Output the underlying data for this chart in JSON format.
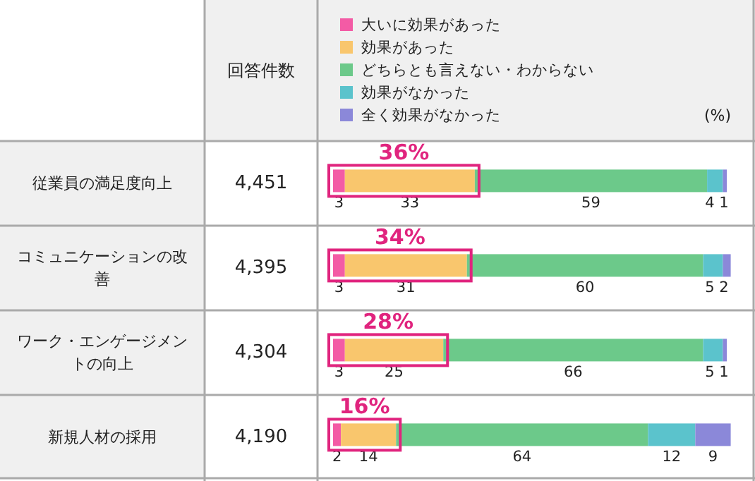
{
  "chart_data": {
    "type": "bar",
    "orientation": "horizontal",
    "stacked": true,
    "data_labels": true,
    "legend": "top",
    "xlabel": "(%)",
    "categories": [
      "従業員の満足度向上",
      "コミュニケーションの改善",
      "ワーク・エンゲージメントの向上",
      "新規人材の採用"
    ],
    "series": [
      {
        "name": "大いに効果があった",
        "color": "#f35ba5",
        "values": [
          3,
          3,
          3,
          2
        ]
      },
      {
        "name": "効果があった",
        "color": "#f9c66d",
        "values": [
          33,
          31,
          25,
          14
        ]
      },
      {
        "name": "どちらとも言えない・わからない",
        "color": "#6cc98a",
        "values": [
          59,
          60,
          66,
          64
        ]
      },
      {
        "name": "効果がなかった",
        "color": "#5bc3cc",
        "values": [
          4,
          5,
          5,
          12
        ]
      },
      {
        "name": "全く効果がなかった",
        "color": "#8b88d9",
        "values": [
          1,
          2,
          1,
          9
        ]
      }
    ],
    "annotations": [
      "回答件数",
      "4,451",
      "4,395",
      "4,304",
      "4,190",
      {
        "text": "36%",
        "x": 36,
        "y": "従業員の満足度向上"
      },
      {
        "text": "34%",
        "x": 34,
        "y": "コミュニケーションの改善"
      },
      {
        "text": "28%",
        "x": 28,
        "y": "ワーク・エンゲージメントの向上"
      },
      {
        "text": "16%",
        "x": 16,
        "y": "新規人材の採用"
      }
    ]
  }
}
